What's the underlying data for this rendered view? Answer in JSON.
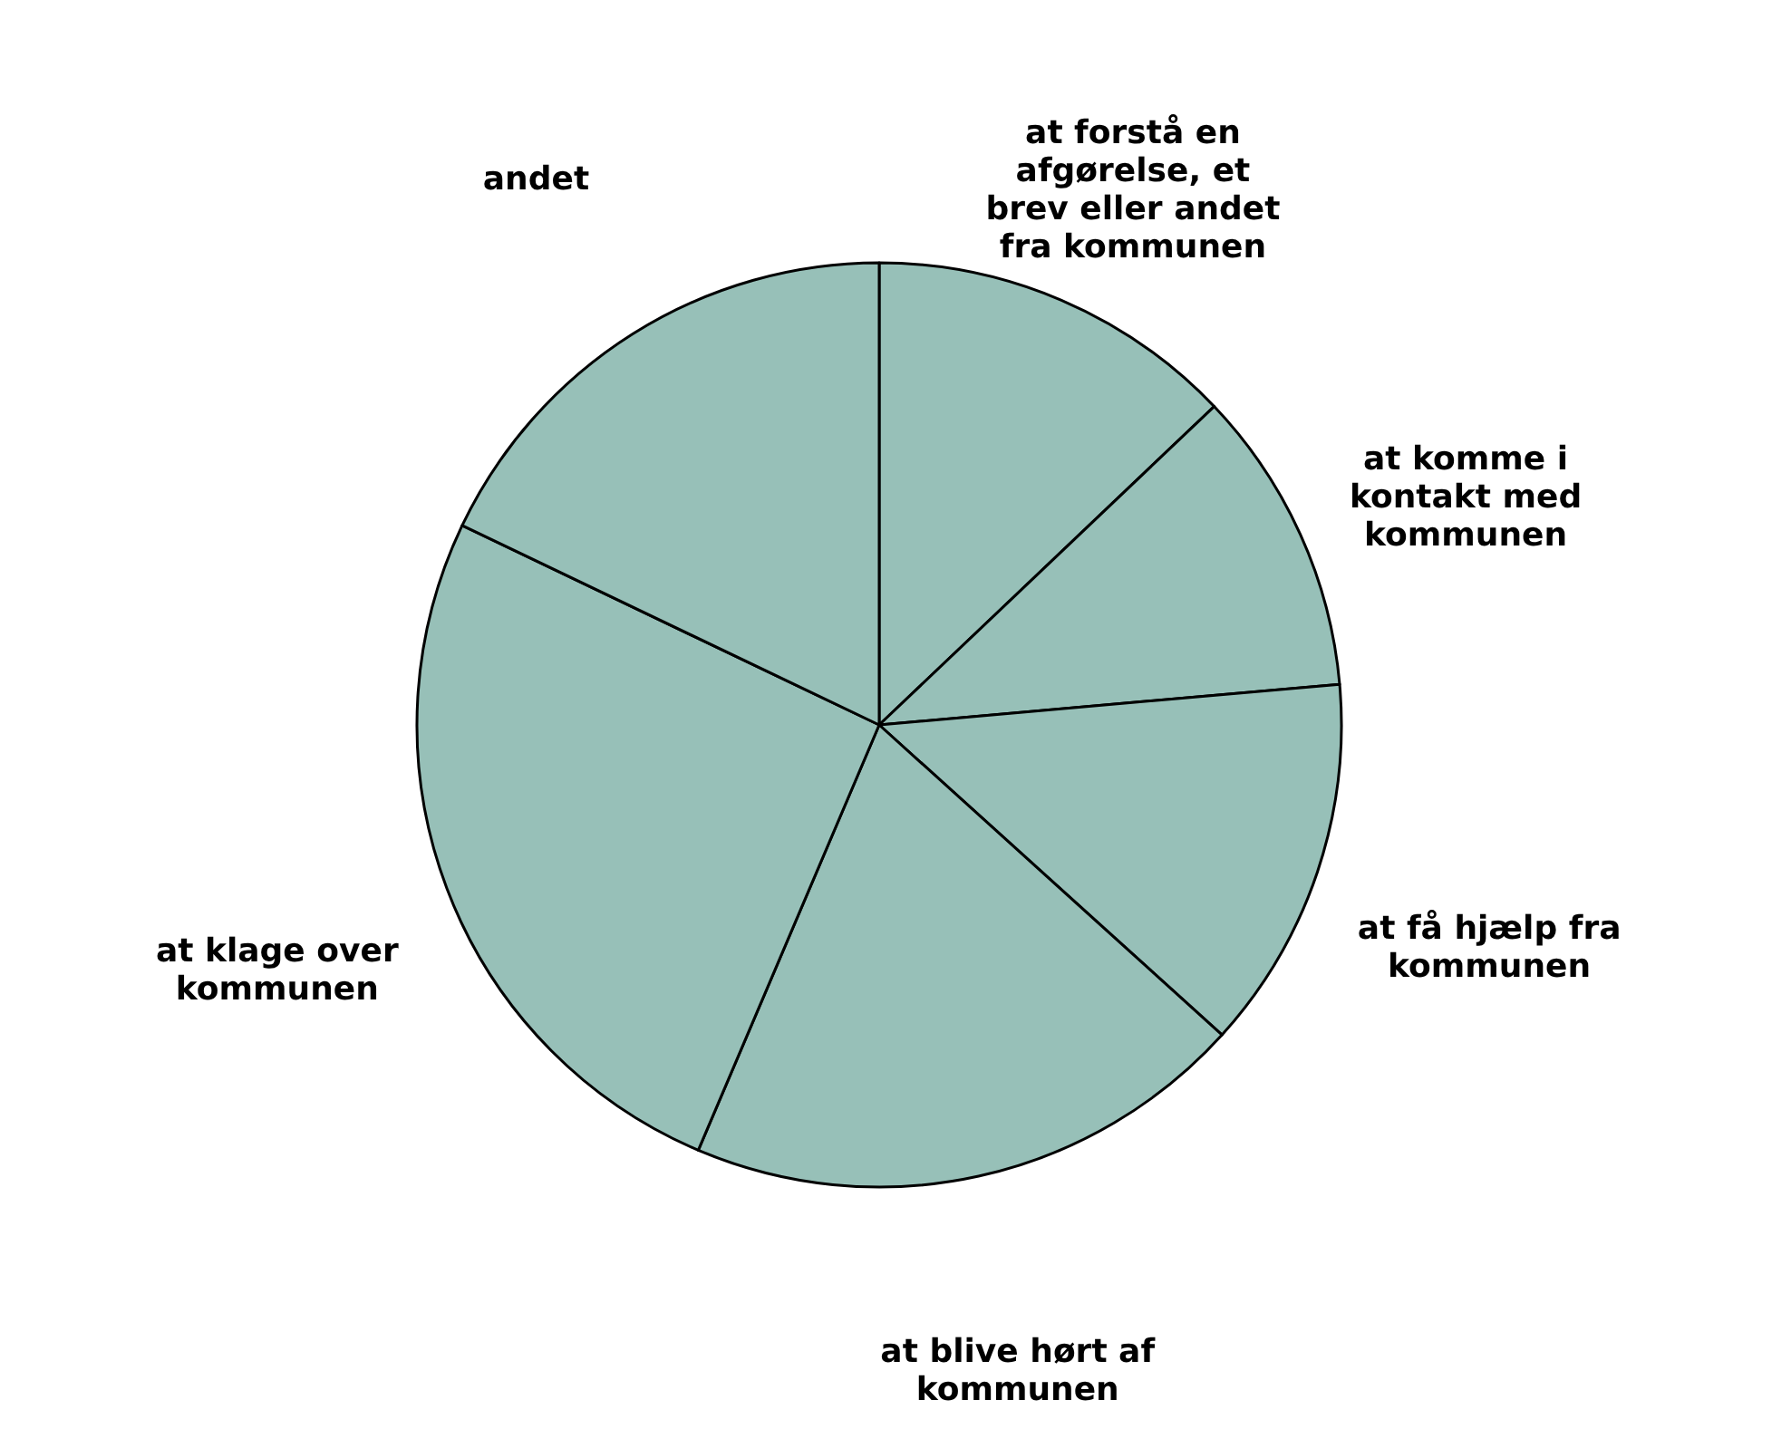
{
  "chart_data": {
    "type": "pie",
    "categories": [
      "at forstå en afgørelse, et brev eller andet fra kommunen",
      "at komme i kontakt med kommunen",
      "at få hjælp fra kommunen",
      "at blive hørt af kommunen",
      "at klage over kommunen",
      "andet"
    ],
    "values": [
      12.9,
      10.7,
      13.1,
      19.7,
      25.7,
      17.9
    ],
    "colors": [
      "#97c0b8",
      "#97c0b8",
      "#97c0b8",
      "#97c0b8",
      "#97c0b8",
      "#97c0b8"
    ]
  }
}
